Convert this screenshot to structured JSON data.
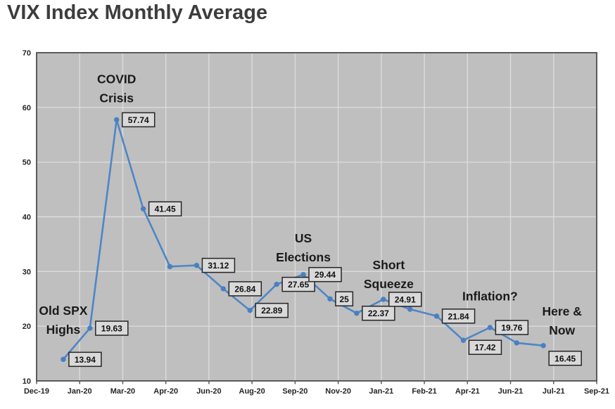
{
  "title": "VIX Index Monthly Average",
  "colors": {
    "title_text": "#3d3d3d",
    "line": "#4e86c6",
    "marker": "#4a80c0",
    "plot_bg": "#bfbfbf",
    "gridline": "#dcdcdc",
    "plot_border": "#4d4d4d",
    "tick_mark": "#595959",
    "label_box_fill": "#d9d9d9",
    "label_box_border": "#262626",
    "label_text": "#111111",
    "axis_text": "#262626",
    "annotation_text": "#1a1a1a"
  },
  "chart_data": {
    "type": "line",
    "title": "VIX Index Monthly Average",
    "xlabel": "",
    "ylabel": "",
    "ylim": [
      10,
      70
    ],
    "y_ticks": [
      10,
      20,
      30,
      40,
      50,
      60,
      70
    ],
    "grid": true,
    "legend": false,
    "x_axis_start_month": "Dec-19",
    "x_axis_end_month": "Sep-21",
    "axis_months_total": 21,
    "start_month_offset": 1,
    "x_tick_labels": [
      "Dec-19",
      "Jan-20",
      "Mar-20",
      "Apr-20",
      "Jun-20",
      "Aug-20",
      "Sep-20",
      "Nov-20",
      "Jan-21",
      "Feb-21",
      "Apr-21",
      "Jun-21",
      "Jul-21",
      "Sep-21"
    ],
    "series": [
      {
        "name": "VIX monthly average",
        "points": [
          {
            "month": "Jan-20",
            "value": 13.94,
            "label": "13.94"
          },
          {
            "month": "Feb-20",
            "value": 19.63,
            "label": "19.63"
          },
          {
            "month": "Mar-20",
            "value": 57.74,
            "label": "57.74"
          },
          {
            "month": "Apr-20",
            "value": 41.45,
            "label": "41.45"
          },
          {
            "month": "May-20",
            "value": 30.9,
            "label": null
          },
          {
            "month": "Jun-20",
            "value": 31.12,
            "label": "31.12"
          },
          {
            "month": "Jul-20",
            "value": 26.84,
            "label": "26.84"
          },
          {
            "month": "Aug-20",
            "value": 22.89,
            "label": "22.89"
          },
          {
            "month": "Sep-20",
            "value": 27.65,
            "label": "27.65"
          },
          {
            "month": "Oct-20",
            "value": 29.44,
            "label": "29.44"
          },
          {
            "month": "Nov-20",
            "value": 25,
            "label": "25"
          },
          {
            "month": "Dec-20",
            "value": 22.37,
            "label": "22.37"
          },
          {
            "month": "Jan-21",
            "value": 24.91,
            "label": "24.91"
          },
          {
            "month": "Feb-21",
            "value": 23.1,
            "label": null
          },
          {
            "month": "Mar-21",
            "value": 21.84,
            "label": "21.84"
          },
          {
            "month": "Apr-21",
            "value": 17.42,
            "label": "17.42",
            "label_dy": 10
          },
          {
            "month": "May-21",
            "value": 19.76,
            "label": "19.76"
          },
          {
            "month": "Jun-21",
            "value": 16.95,
            "label": null
          },
          {
            "month": "Jul-21",
            "value": 16.45,
            "label": "16.45",
            "label_dy": 18
          }
        ]
      }
    ],
    "annotations": [
      {
        "name": "old-spx-highs",
        "lines": [
          "Old SPX",
          "Highs"
        ],
        "m": 1.0,
        "v": 22.85
      },
      {
        "name": "covid-crisis",
        "lines": [
          "COVID",
          "Crisis"
        ],
        "m": 3.0,
        "v": 65.2
      },
      {
        "name": "us-elections",
        "lines": [
          "US",
          "Elections"
        ],
        "m": 10.0,
        "v": 36.1
      },
      {
        "name": "short-squeeze",
        "lines": [
          "Short",
          "Squeeze"
        ],
        "m": 13.2,
        "v": 31.2
      },
      {
        "name": "inflation",
        "lines": [
          "Inflation?"
        ],
        "m": 17.0,
        "v": 25.5
      },
      {
        "name": "here-and-now",
        "lines": [
          "Here &",
          "Now"
        ],
        "m": 19.7,
        "v": 22.7
      }
    ]
  }
}
